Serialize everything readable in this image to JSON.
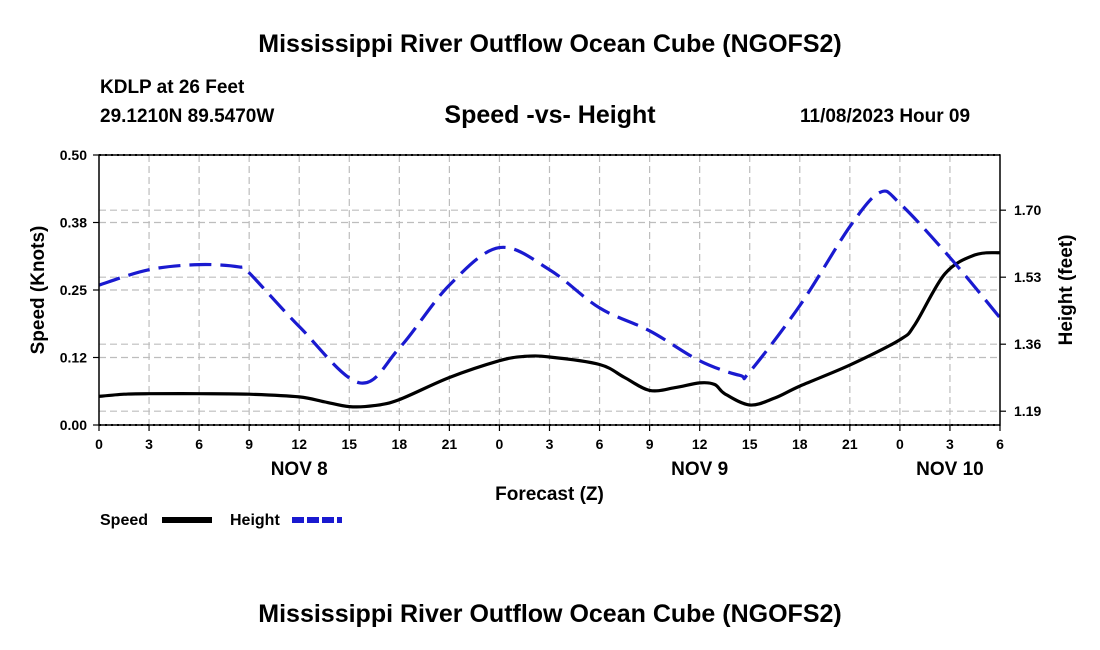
{
  "header": {
    "title": "Mississippi River Outflow Ocean Cube (NGOFS2)",
    "station": "KDLP at 26 Feet",
    "coords": "29.1210N  89.5470W",
    "subtitle": "Speed -vs- Height",
    "timestamp": "11/08/2023 Hour 09"
  },
  "footer": {
    "title": "Mississippi River Outflow Ocean Cube (NGOFS2)"
  },
  "chart_data": {
    "type": "line",
    "title": "Speed -vs- Height",
    "xlabel": "Forecast (Z)",
    "ylabel": "Speed (Knots)",
    "y2label": "Height (feet)",
    "x_range_hours": [
      0,
      54
    ],
    "x_ticks": [
      0,
      3,
      6,
      9,
      12,
      15,
      18,
      21,
      24,
      27,
      30,
      33,
      36,
      39,
      42,
      45,
      48,
      51,
      54
    ],
    "x_tick_labels": [
      "0",
      "3",
      "6",
      "9",
      "12",
      "15",
      "18",
      "21",
      "0",
      "3",
      "6",
      "9",
      "12",
      "15",
      "18",
      "21",
      "0",
      "3",
      "6"
    ],
    "date_labels": [
      {
        "label": "NOV 8",
        "hour": 12
      },
      {
        "label": "NOV 9",
        "hour": 36
      },
      {
        "label": "NOV 10",
        "hour": 51
      }
    ],
    "ylim": [
      0,
      0.5
    ],
    "y_ticks": [
      0,
      0.125,
      0.25,
      0.375,
      0.5
    ],
    "y_tick_labels": [
      "0.00",
      "0.12",
      "0.25",
      "0.38",
      "0.50"
    ],
    "y2lim": [
      1.155,
      1.84
    ],
    "y2_ticks": [
      1.19,
      1.36,
      1.53,
      1.7
    ],
    "y2_tick_labels": [
      "1.19",
      "1.36",
      "1.53",
      "1.70"
    ],
    "grid": true,
    "series": [
      {
        "name": "Speed",
        "axis": "left",
        "color": "#000000",
        "dash": "solid",
        "x": [
          0,
          1.5,
          3,
          6,
          9,
          12,
          13.5,
          15,
          16.5,
          18,
          21,
          24,
          25.5,
          27,
          30,
          31.5,
          33,
          34.5,
          36,
          36.9,
          37.5,
          39,
          40.5,
          42,
          45,
          48,
          48.9,
          50.7,
          52.5,
          54
        ],
        "values": [
          0.053,
          0.057,
          0.058,
          0.058,
          0.057,
          0.052,
          0.043,
          0.034,
          0.036,
          0.047,
          0.088,
          0.119,
          0.127,
          0.126,
          0.112,
          0.088,
          0.064,
          0.069,
          0.078,
          0.075,
          0.058,
          0.037,
          0.05,
          0.072,
          0.111,
          0.158,
          0.186,
          0.28,
          0.315,
          0.319
        ]
      },
      {
        "name": "Height",
        "axis": "right",
        "color": "#1a1ad0",
        "dash": "dashed",
        "x": [
          0,
          3,
          6,
          8.4,
          9,
          12,
          15.6,
          18,
          21,
          24,
          27,
          30,
          33,
          36,
          38.4,
          39,
          42,
          45,
          46.8,
          48,
          51,
          54
        ],
        "values": [
          1.51,
          1.549,
          1.562,
          1.556,
          1.541,
          1.405,
          1.262,
          1.35,
          1.51,
          1.605,
          1.549,
          1.452,
          1.394,
          1.318,
          1.281,
          1.29,
          1.458,
          1.658,
          1.745,
          1.717,
          1.58,
          1.427
        ]
      }
    ],
    "legend": [
      {
        "label": "Speed",
        "color": "#000000",
        "dash": "solid"
      },
      {
        "label": "Height",
        "color": "#1a1ad0",
        "dash": "dashed"
      }
    ]
  }
}
